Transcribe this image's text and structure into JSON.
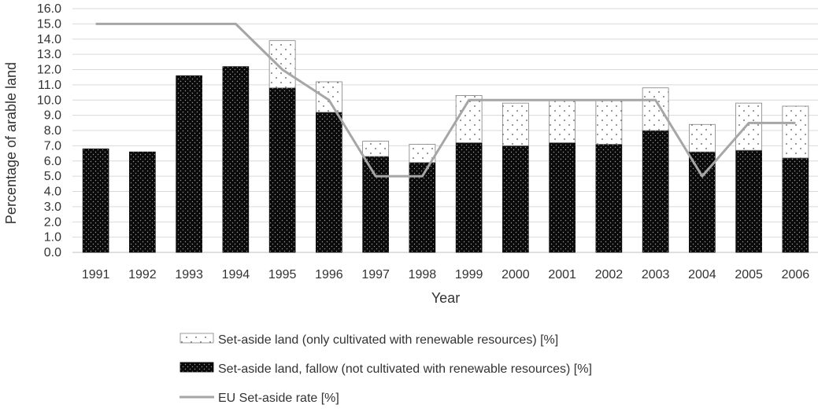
{
  "chart_data": {
    "type": "bar",
    "stacked": true,
    "title": "",
    "xlabel": "Year",
    "ylabel": "Percentage of arable land",
    "ylim": [
      0,
      16
    ],
    "ytick_step": 1,
    "grid": true,
    "legend_position": "bottom",
    "categories": [
      "1991",
      "1992",
      "1993",
      "1994",
      "1995",
      "1996",
      "1997",
      "1998",
      "1999",
      "2000",
      "2001",
      "2002",
      "2003",
      "2004",
      "2005",
      "2006"
    ],
    "series": [
      {
        "name": "Set-aside land, fallow (not cultivated with renewable resources) [%]",
        "kind": "bar",
        "pattern": "dense-dots-black",
        "values": [
          6.8,
          6.6,
          11.6,
          12.2,
          10.8,
          9.2,
          6.3,
          5.9,
          7.2,
          7.0,
          7.2,
          7.1,
          8.0,
          6.6,
          6.7,
          6.2
        ]
      },
      {
        "name": "Set-aside land (only cultivated with renewable resources) [%]",
        "kind": "bar",
        "pattern": "sparse-dots-white",
        "values": [
          0.0,
          0.0,
          0.0,
          0.0,
          3.1,
          2.0,
          1.0,
          1.2,
          3.1,
          2.8,
          2.8,
          2.9,
          2.8,
          1.8,
          3.1,
          3.4
        ]
      },
      {
        "name": "EU Set-aside rate [%]",
        "kind": "line",
        "color": "#a6a6a6",
        "values": [
          15,
          15,
          15,
          15,
          12,
          10,
          5,
          5,
          10,
          10,
          10,
          10,
          10,
          5,
          8.5,
          8.5
        ]
      }
    ],
    "legend_order": [
      1,
      0,
      2
    ]
  }
}
